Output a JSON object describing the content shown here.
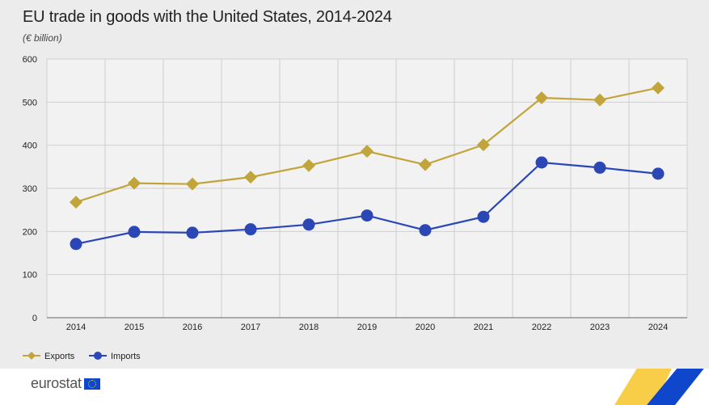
{
  "title": "EU trade in goods with the United States, 2014-2024",
  "subtitle": "(€ billion)",
  "footer": {
    "logo_text": "eurostat"
  },
  "colors": {
    "exports": "#c1a53a",
    "imports": "#2a47b5",
    "grid": "#cfcfcf",
    "plot_bg": "#f2f2f2",
    "accent_yellow": "#f7c428",
    "accent_blue": "#0e47cb"
  },
  "chart_data": {
    "type": "line",
    "title": "EU trade in goods with the United States, 2014-2024",
    "subtitle": "(€ billion)",
    "xlabel": "",
    "ylabel": "",
    "categories": [
      "2014",
      "2015",
      "2016",
      "2017",
      "2018",
      "2019",
      "2020",
      "2021",
      "2022",
      "2023",
      "2024"
    ],
    "ylim": [
      0,
      600
    ],
    "yticks": [
      0,
      100,
      200,
      300,
      400,
      500,
      600
    ],
    "grid": true,
    "legend_position": "bottom-left",
    "series": [
      {
        "name": "Exports",
        "marker": "diamond",
        "color": "#c1a53a",
        "values": [
          268,
          312,
          310,
          326,
          353,
          386,
          355,
          401,
          510,
          505,
          533
        ]
      },
      {
        "name": "Imports",
        "marker": "circle",
        "color": "#2a47b5",
        "values": [
          171,
          199,
          197,
          205,
          216,
          237,
          203,
          234,
          360,
          348,
          334
        ]
      }
    ]
  }
}
